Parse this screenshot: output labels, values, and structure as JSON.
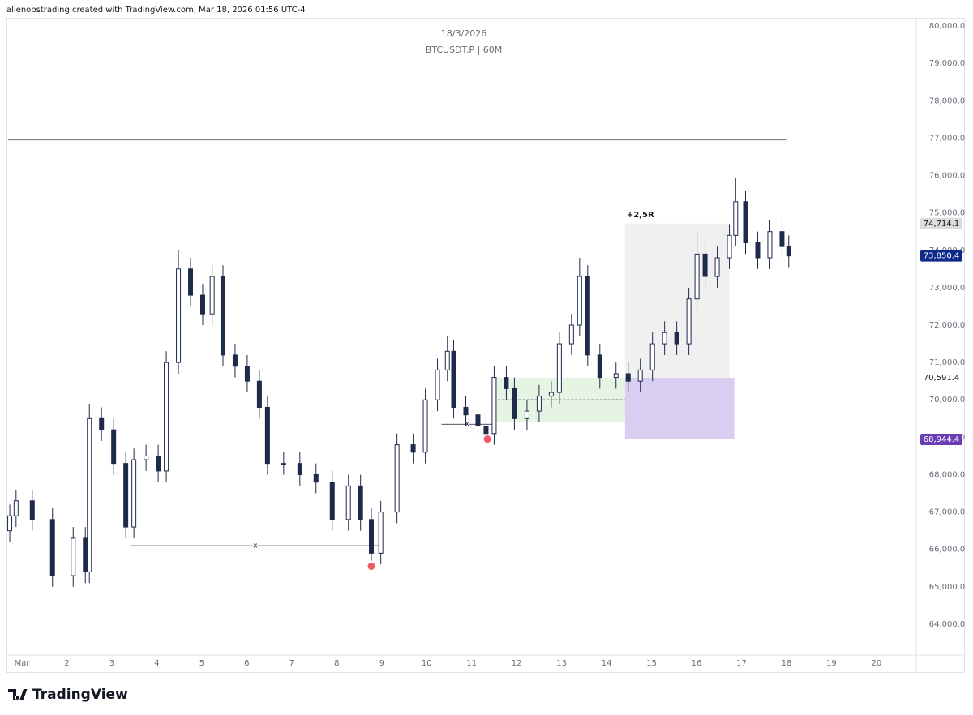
{
  "header": {
    "credit": "alienobstrading created with TradingView.com, Mar 18, 2026 01:56 UTC-4",
    "brand": "TradingView"
  },
  "chart_data": {
    "type": "candlestick",
    "title": "18/3/2026",
    "subtitle": "BTCUSDT.P | 60M",
    "xlim": [
      0.657,
      20.885
    ],
    "ylim": [
      63176,
      80217
    ],
    "xticks": [
      {
        "value": 1,
        "label": "Mar"
      },
      2,
      3,
      4,
      5,
      6,
      7,
      8,
      9,
      10,
      11,
      12,
      13,
      14,
      15,
      16,
      17,
      18,
      19,
      20
    ],
    "yticks": [
      {
        "value": 64000,
        "label": "64,000.0"
      },
      {
        "value": 65000,
        "label": "65,000.0"
      },
      {
        "value": 66000,
        "label": "66,000.0"
      },
      {
        "value": 67000,
        "label": "67,000.0"
      },
      {
        "value": 68000,
        "label": "68,000.0"
      },
      {
        "value": 69000,
        "label": "69,000.0"
      },
      {
        "value": 70000,
        "label": "70,000.0"
      },
      {
        "value": 71000,
        "label": "71,000.0"
      },
      {
        "value": 72000,
        "label": "72,000.0"
      },
      {
        "value": 73000,
        "label": "73,000.0"
      },
      {
        "value": 74000,
        "label": "74,000.0"
      },
      {
        "value": 75000,
        "label": "75,000.0"
      },
      {
        "value": 76000,
        "label": "76,000.0"
      },
      {
        "value": 77000,
        "label": "77,000.0"
      },
      {
        "value": 78000,
        "label": "78,000.0"
      },
      {
        "value": 79000,
        "label": "79,000.0"
      },
      {
        "value": 80000,
        "label": "80,000.0"
      }
    ],
    "color": "#1e2a4a",
    "x": [
      0.73,
      0.87,
      1.23,
      1.68,
      2.14,
      2.41,
      2.5,
      2.77,
      3.04,
      3.31,
      3.49,
      3.76,
      4.03,
      4.21,
      4.48,
      4.75,
      5.02,
      5.23,
      5.47,
      5.74,
      6.01,
      6.28,
      6.46,
      6.82,
      7.18,
      7.54,
      7.9,
      8.26,
      8.53,
      8.77,
      8.98,
      9.34,
      9.7,
      9.97,
      10.24,
      10.46,
      10.6,
      10.87,
      11.14,
      11.32,
      11.5,
      11.77,
      11.95,
      12.23,
      12.5,
      12.77,
      12.95,
      13.22,
      13.4,
      13.58,
      13.85,
      14.21,
      14.48,
      14.75,
      15.02,
      15.29,
      15.56,
      15.83,
      16.01,
      16.19,
      16.46,
      16.73,
      16.87,
      17.09,
      17.36,
      17.63,
      17.9,
      18.05
    ],
    "open": [
      66500,
      66900,
      67300,
      66800,
      65300,
      66300,
      65400,
      69500,
      69200,
      68300,
      66600,
      68400,
      68500,
      68100,
      71000,
      73500,
      72800,
      72300,
      73300,
      71200,
      70900,
      70500,
      69800,
      68300,
      68300,
      68000,
      67800,
      66800,
      67700,
      66800,
      65900,
      67000,
      68800,
      68600,
      70000,
      70800,
      71300,
      69800,
      69600,
      69300,
      69100,
      70600,
      70300,
      69500,
      69700,
      70100,
      70200,
      71500,
      72000,
      73300,
      71200,
      70600,
      70700,
      70500,
      70800,
      71500,
      71800,
      71500,
      72700,
      73900,
      73300,
      73800,
      74400,
      75300,
      74200,
      73800,
      74500,
      74100
    ],
    "high": [
      67200,
      67600,
      67600,
      67100,
      66600,
      66600,
      69900,
      69800,
      69500,
      68600,
      68700,
      68800,
      68800,
      71300,
      74000,
      73800,
      73100,
      73600,
      73600,
      71500,
      71200,
      70800,
      70100,
      68600,
      68600,
      68300,
      68100,
      68000,
      68000,
      67100,
      67300,
      69100,
      69100,
      70300,
      71100,
      71700,
      71600,
      70100,
      69900,
      69600,
      70900,
      70900,
      70600,
      70000,
      70400,
      70500,
      71800,
      72300,
      73800,
      73600,
      71500,
      71000,
      71000,
      71100,
      71800,
      72100,
      72100,
      73000,
      74500,
      74200,
      74100,
      74700,
      75950,
      75600,
      74500,
      74800,
      74800,
      74400
    ],
    "low": [
      66200,
      66600,
      66500,
      65000,
      65000,
      65100,
      65100,
      68900,
      68000,
      66300,
      66300,
      68100,
      67800,
      67800,
      70700,
      72500,
      72000,
      72000,
      70900,
      70600,
      70200,
      69500,
      68000,
      68000,
      67700,
      67500,
      66500,
      66500,
      66500,
      65700,
      65600,
      66700,
      68300,
      68300,
      69700,
      70500,
      69500,
      69300,
      69000,
      68800,
      68800,
      70000,
      69200,
      69200,
      69400,
      69800,
      69900,
      71200,
      71700,
      70900,
      70300,
      70300,
      70200,
      70200,
      70500,
      71200,
      71200,
      71200,
      72400,
      73000,
      73000,
      73500,
      74100,
      73900,
      73500,
      73500,
      73800,
      73550
    ],
    "close": [
      66900,
      67300,
      66800,
      65300,
      66300,
      65400,
      69500,
      69200,
      68300,
      66600,
      68400,
      68500,
      68100,
      71000,
      73500,
      72800,
      72300,
      73300,
      71200,
      70900,
      70500,
      69800,
      68300,
      68300,
      68000,
      67800,
      66800,
      67700,
      66800,
      65900,
      67000,
      68800,
      68600,
      70000,
      70800,
      71300,
      69800,
      69600,
      69300,
      69100,
      70600,
      70300,
      69500,
      69700,
      70100,
      70200,
      71500,
      72000,
      73300,
      71200,
      70600,
      70700,
      70500,
      70800,
      71500,
      71800,
      71500,
      72700,
      73900,
      73300,
      73800,
      74400,
      75300,
      74200,
      73800,
      74500,
      74100,
      73850
    ],
    "level": {
      "x": [
        0.69,
        17.99
      ],
      "price": 76950
    },
    "position": {
      "x": [
        14.41,
        16.84
      ],
      "target_x": 16.73,
      "target": 74714.1,
      "entry": 70591.4,
      "stop": 68944.4,
      "label": "+2,5R",
      "target_color": "#f0f0f0",
      "stop_color": "#d9cdf0"
    },
    "zone": {
      "x": [
        11.5,
        14.66
      ],
      "y": [
        69400,
        70591.4
      ],
      "mid": 70000,
      "color": "#e6f4e3"
    },
    "sweeps": [
      {
        "x": [
          3.4,
          8.98
        ],
        "price": 66100,
        "label": "x"
      },
      {
        "x": [
          10.33,
          11.47
        ],
        "price": 69350,
        "label": "x"
      }
    ],
    "dots": [
      {
        "x": 8.77,
        "price": 65550
      },
      {
        "x": 11.35,
        "price": 68950
      }
    ],
    "price_labels": [
      {
        "value": 74714.1,
        "label": "74,714.1",
        "color": "#dcdcdc",
        "text_color": "#131722"
      },
      {
        "value": 73850.4,
        "label": "73,850.4",
        "color": "#0d2a8a",
        "text_color": "#ffffff"
      },
      {
        "value": 70591.4,
        "label": "70,591.4",
        "color": "#ffffff",
        "text_color": "#131722"
      },
      {
        "value": 68944.4,
        "label": "68,944.4",
        "color": "#6a3fb5",
        "text_color": "#ffffff"
      }
    ]
  }
}
